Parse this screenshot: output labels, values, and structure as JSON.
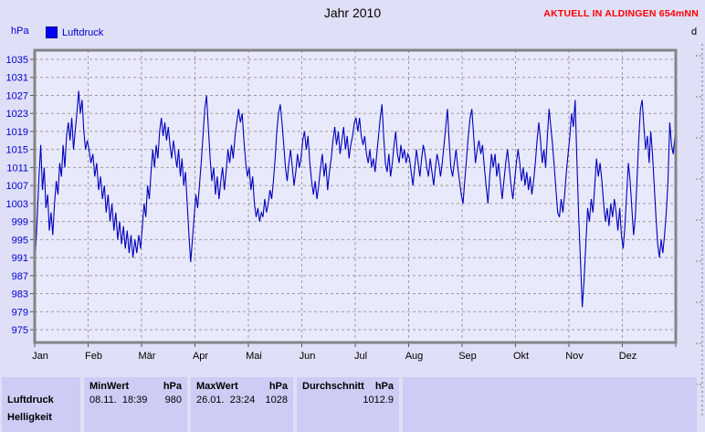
{
  "title": "Jahr 2010",
  "status_label": "AKTUELL IN ALDINGEN 654mNN",
  "axis_unit_label": "hPa",
  "legend": {
    "label": "Luftdruck",
    "swatch_color": "#0000f8"
  },
  "adjacent_panel": {
    "label_fragment": "d"
  },
  "colors": {
    "page_bg": "#dfdff7",
    "plot_bg": "#e9e9fc",
    "table_cell_bg": "#ccccf5",
    "frame": "#848488",
    "grid": "#9c9c9c",
    "line": "#0000bd",
    "blue_label": "#0000cf",
    "red_status": "#ff0000"
  },
  "chart_data": {
    "type": "line",
    "title": "Jahr 2010",
    "ylabel": "hPa",
    "legend_position": "top-left",
    "grid": "dashed",
    "ylim": [
      972,
      1037
    ],
    "y_ticks": [
      1035,
      1031,
      1027,
      1023,
      1019,
      1015,
      1011,
      1007,
      1003,
      999,
      995,
      991,
      987,
      983,
      979,
      975
    ],
    "categories": [
      "Jan",
      "Feb",
      "Mär",
      "Apr",
      "Mai",
      "Jun",
      "Jul",
      "Aug",
      "Sep",
      "Okt",
      "Nov",
      "Dez"
    ],
    "days_per_month": [
      31,
      28,
      31,
      30,
      31,
      30,
      31,
      31,
      30,
      31,
      30,
      31
    ],
    "series": [
      {
        "name": "Luftdruck",
        "unit": "hPa",
        "x_unit": "day_of_year",
        "values": [
          992,
          1000,
          1009,
          1016,
          1006,
          1011,
          1002,
          1005,
          997,
          1001,
          996,
          1003,
          1008,
          1005,
          1012,
          1009,
          1016,
          1011,
          1018,
          1021,
          1017,
          1022,
          1015,
          1019,
          1023,
          1028,
          1023,
          1026,
          1019,
          1015,
          1017,
          1015,
          1012,
          1014,
          1009,
          1012,
          1006,
          1009,
          1004,
          1007,
          1001,
          1005,
          999,
          1003,
          997,
          1001,
          995,
          999,
          994,
          998,
          993,
          997,
          992,
          996,
          991,
          995,
          992,
          996,
          993,
          998,
          1003,
          1000,
          1007,
          1004,
          1010,
          1015,
          1011,
          1016,
          1013,
          1019,
          1022,
          1018,
          1021,
          1017,
          1020,
          1016,
          1013,
          1017,
          1014,
          1011,
          1015,
          1009,
          1013,
          1007,
          1010,
          1003,
          996,
          990,
          995,
          1000,
          1005,
          1002,
          1007,
          1012,
          1018,
          1024,
          1027,
          1020,
          1013,
          1008,
          1011,
          1005,
          1009,
          1004,
          1008,
          1011,
          1006,
          1010,
          1015,
          1012,
          1016,
          1013,
          1018,
          1021,
          1024,
          1021,
          1023,
          1017,
          1012,
          1009,
          1011,
          1006,
          1009,
          1003,
          1000,
          1002,
          999,
          1001,
          1000,
          1004,
          1001,
          1003,
          1006,
          1004,
          1008,
          1013,
          1019,
          1023,
          1025,
          1021,
          1016,
          1011,
          1008,
          1012,
          1015,
          1011,
          1007,
          1010,
          1014,
          1011,
          1013,
          1017,
          1019,
          1015,
          1018,
          1012,
          1008,
          1005,
          1008,
          1004,
          1007,
          1011,
          1014,
          1009,
          1012,
          1006,
          1010,
          1013,
          1017,
          1020,
          1016,
          1019,
          1014,
          1017,
          1020,
          1015,
          1018,
          1013,
          1016,
          1018,
          1021,
          1022,
          1019,
          1022,
          1018,
          1016,
          1018,
          1014,
          1012,
          1015,
          1011,
          1013,
          1010,
          1014,
          1018,
          1022,
          1025,
          1018,
          1012,
          1010,
          1014,
          1009,
          1012,
          1016,
          1019,
          1014,
          1012,
          1016,
          1013,
          1015,
          1012,
          1014,
          1013,
          1010,
          1007,
          1011,
          1015,
          1012,
          1009,
          1013,
          1016,
          1014,
          1011,
          1009,
          1013,
          1010,
          1007,
          1011,
          1014,
          1012,
          1009,
          1012,
          1016,
          1020,
          1024,
          1017,
          1011,
          1009,
          1012,
          1015,
          1011,
          1008,
          1005,
          1003,
          1008,
          1013,
          1018,
          1022,
          1024,
          1018,
          1012,
          1015,
          1017,
          1014,
          1016,
          1011,
          1007,
          1003,
          1009,
          1014,
          1011,
          1014,
          1009,
          1012,
          1008,
          1004,
          1008,
          1012,
          1015,
          1011,
          1007,
          1004,
          1008,
          1012,
          1015,
          1012,
          1008,
          1011,
          1007,
          1010,
          1006,
          1009,
          1005,
          1008,
          1012,
          1017,
          1021,
          1017,
          1012,
          1015,
          1011,
          1018,
          1024,
          1020,
          1016,
          1011,
          1006,
          1001,
          1000,
          1004,
          1001,
          1005,
          1010,
          1014,
          1018,
          1023,
          1020,
          1026,
          1012,
          1000,
          990,
          980,
          986,
          994,
          1002,
          999,
          1004,
          1001,
          1007,
          1013,
          1009,
          1012,
          1008,
          1003,
          999,
          1002,
          998,
          1003,
          1000,
          1004,
          1001,
          997,
          1002,
          996,
          993,
          998,
          1005,
          1012,
          1008,
          1002,
          996,
          1000,
          1008,
          1017,
          1024,
          1026,
          1020,
          1015,
          1018,
          1012,
          1019,
          1014,
          1007,
          1000,
          994,
          991,
          995,
          992,
          996,
          1001,
          1008,
          1021,
          1016,
          1014,
          1018
        ]
      }
    ]
  },
  "summary_table": {
    "rows": [
      {
        "sensor": "Luftdruck",
        "min": {
          "label": "MinWert",
          "unit": "hPa",
          "datetime": "08.11.  18:39",
          "value": "980"
        },
        "max": {
          "label": "MaxWert",
          "unit": "hPa",
          "datetime": "26.01.  23:24",
          "value": "1028"
        },
        "avg": {
          "label": "Durchschnitt",
          "unit": "hPa",
          "value": "1012.9"
        }
      },
      {
        "sensor": "Helligkeit"
      }
    ]
  }
}
